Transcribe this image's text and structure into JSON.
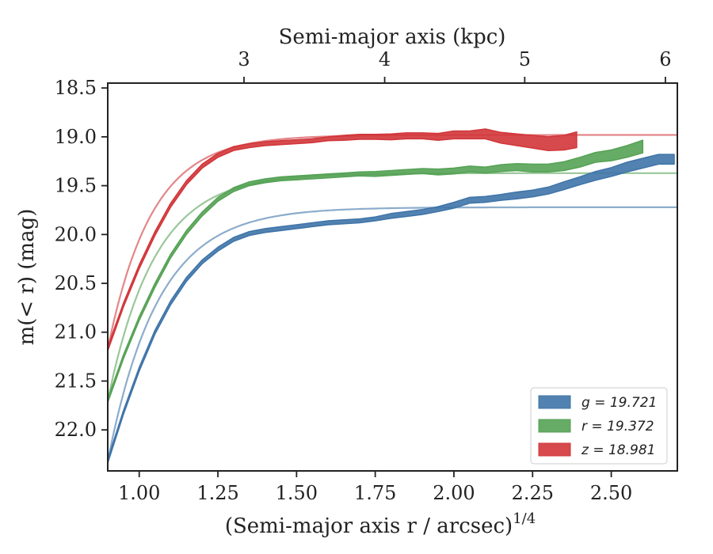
{
  "chart_data": {
    "type": "line",
    "title": "",
    "xlabel": "(Semi-major axis r / arcsec)",
    "xlabel_superscript": "1/4",
    "ylabel": "m(< r) (mag)",
    "top_xlabel": "Semi-major axis (kpc)",
    "xlim": [
      0.9,
      2.71
    ],
    "ylim": [
      22.42,
      18.45
    ],
    "y_inverted": true,
    "x_ticks": [
      1.0,
      1.25,
      1.5,
      1.75,
      2.0,
      2.25,
      2.5
    ],
    "x_tick_labels": [
      "1.00",
      "1.25",
      "1.50",
      "1.75",
      "2.00",
      "2.25",
      "2.50"
    ],
    "y_ticks": [
      18.5,
      19.0,
      19.5,
      20.0,
      20.5,
      21.0,
      21.5,
      22.0
    ],
    "y_tick_labels": [
      "18.5",
      "19.0",
      "19.5",
      "20.0",
      "20.5",
      "21.0",
      "21.5",
      "22.0"
    ],
    "top_ticks": [
      {
        "label": "3",
        "x": 1.333
      },
      {
        "label": "4",
        "x": 1.78
      },
      {
        "label": "5",
        "x": 2.225
      },
      {
        "label": "6",
        "x": 2.672
      }
    ],
    "grid": false,
    "legend_position": "bottom-right",
    "series": [
      {
        "name": "g = 19.721",
        "color": "#3f74a8",
        "x": [
          0.9,
          0.95,
          1.0,
          1.05,
          1.1,
          1.15,
          1.2,
          1.25,
          1.3,
          1.35,
          1.4,
          1.45,
          1.5,
          1.55,
          1.6,
          1.65,
          1.7,
          1.75,
          1.8,
          1.85,
          1.9,
          1.95,
          2.0,
          2.05,
          2.1,
          2.15,
          2.2,
          2.25,
          2.3,
          2.35,
          2.4,
          2.45,
          2.5,
          2.55,
          2.6,
          2.65,
          2.7
        ],
        "y": [
          22.32,
          21.82,
          21.38,
          21.0,
          20.7,
          20.46,
          20.28,
          20.15,
          20.05,
          19.99,
          19.96,
          19.94,
          19.92,
          19.9,
          19.88,
          19.87,
          19.86,
          19.84,
          19.81,
          19.79,
          19.77,
          19.74,
          19.7,
          19.65,
          19.64,
          19.62,
          19.6,
          19.58,
          19.55,
          19.5,
          19.45,
          19.4,
          19.36,
          19.31,
          19.27,
          19.23,
          19.23
        ],
        "band": [
          0.02,
          0.02,
          0.02,
          0.02,
          0.02,
          0.02,
          0.02,
          0.02,
          0.02,
          0.02,
          0.02,
          0.02,
          0.02,
          0.02,
          0.02,
          0.02,
          0.02,
          0.02,
          0.025,
          0.025,
          0.025,
          0.025,
          0.03,
          0.03,
          0.03,
          0.03,
          0.035,
          0.035,
          0.035,
          0.04,
          0.04,
          0.045,
          0.045,
          0.05,
          0.05,
          0.05,
          0.05
        ],
        "model": {
          "asymptote": 19.721,
          "y_start": 22.32,
          "scale": 0.16
        }
      },
      {
        "name": "r = 19.372",
        "color": "#55a255",
        "x": [
          0.9,
          0.95,
          1.0,
          1.05,
          1.1,
          1.15,
          1.2,
          1.25,
          1.3,
          1.35,
          1.4,
          1.45,
          1.5,
          1.55,
          1.6,
          1.65,
          1.7,
          1.75,
          1.8,
          1.85,
          1.9,
          1.95,
          2.0,
          2.05,
          2.1,
          2.15,
          2.2,
          2.25,
          2.3,
          2.35,
          2.4,
          2.45,
          2.5,
          2.55,
          2.6
        ],
        "y": [
          21.7,
          21.25,
          20.86,
          20.52,
          20.22,
          19.98,
          19.79,
          19.64,
          19.54,
          19.48,
          19.45,
          19.43,
          19.42,
          19.41,
          19.4,
          19.39,
          19.38,
          19.38,
          19.37,
          19.36,
          19.35,
          19.36,
          19.35,
          19.33,
          19.34,
          19.32,
          19.31,
          19.32,
          19.32,
          19.3,
          19.26,
          19.21,
          19.19,
          19.15,
          19.1
        ],
        "band": [
          0.02,
          0.02,
          0.02,
          0.02,
          0.02,
          0.02,
          0.02,
          0.02,
          0.02,
          0.02,
          0.02,
          0.02,
          0.02,
          0.02,
          0.02,
          0.02,
          0.02,
          0.025,
          0.025,
          0.025,
          0.025,
          0.03,
          0.03,
          0.03,
          0.03,
          0.035,
          0.035,
          0.04,
          0.04,
          0.045,
          0.05,
          0.05,
          0.055,
          0.06,
          0.065
        ],
        "model": {
          "asymptote": 19.372,
          "y_start": 21.7,
          "scale": 0.15
        }
      },
      {
        "name": "z = 18.981",
        "color": "#d1363a",
        "x": [
          0.9,
          0.95,
          1.0,
          1.05,
          1.1,
          1.15,
          1.2,
          1.25,
          1.3,
          1.35,
          1.4,
          1.45,
          1.5,
          1.55,
          1.6,
          1.65,
          1.7,
          1.75,
          1.8,
          1.85,
          1.9,
          1.95,
          2.0,
          2.05,
          2.1,
          2.15,
          2.2,
          2.25,
          2.3,
          2.35,
          2.39
        ],
        "y": [
          21.17,
          20.72,
          20.33,
          19.99,
          19.7,
          19.47,
          19.3,
          19.19,
          19.12,
          19.09,
          19.07,
          19.06,
          19.05,
          19.04,
          19.02,
          19.01,
          19.0,
          19.0,
          19.0,
          18.99,
          18.99,
          19.0,
          18.98,
          18.98,
          18.97,
          19.01,
          19.03,
          19.05,
          19.07,
          19.06,
          19.03
        ],
        "band": [
          0.02,
          0.02,
          0.02,
          0.02,
          0.02,
          0.02,
          0.02,
          0.02,
          0.02,
          0.02,
          0.02,
          0.02,
          0.02,
          0.02,
          0.02,
          0.025,
          0.025,
          0.025,
          0.03,
          0.03,
          0.03,
          0.035,
          0.04,
          0.04,
          0.05,
          0.055,
          0.06,
          0.065,
          0.07,
          0.075,
          0.08
        ],
        "model": {
          "asymptote": 18.981,
          "y_start": 21.17,
          "scale": 0.14
        }
      }
    ]
  }
}
